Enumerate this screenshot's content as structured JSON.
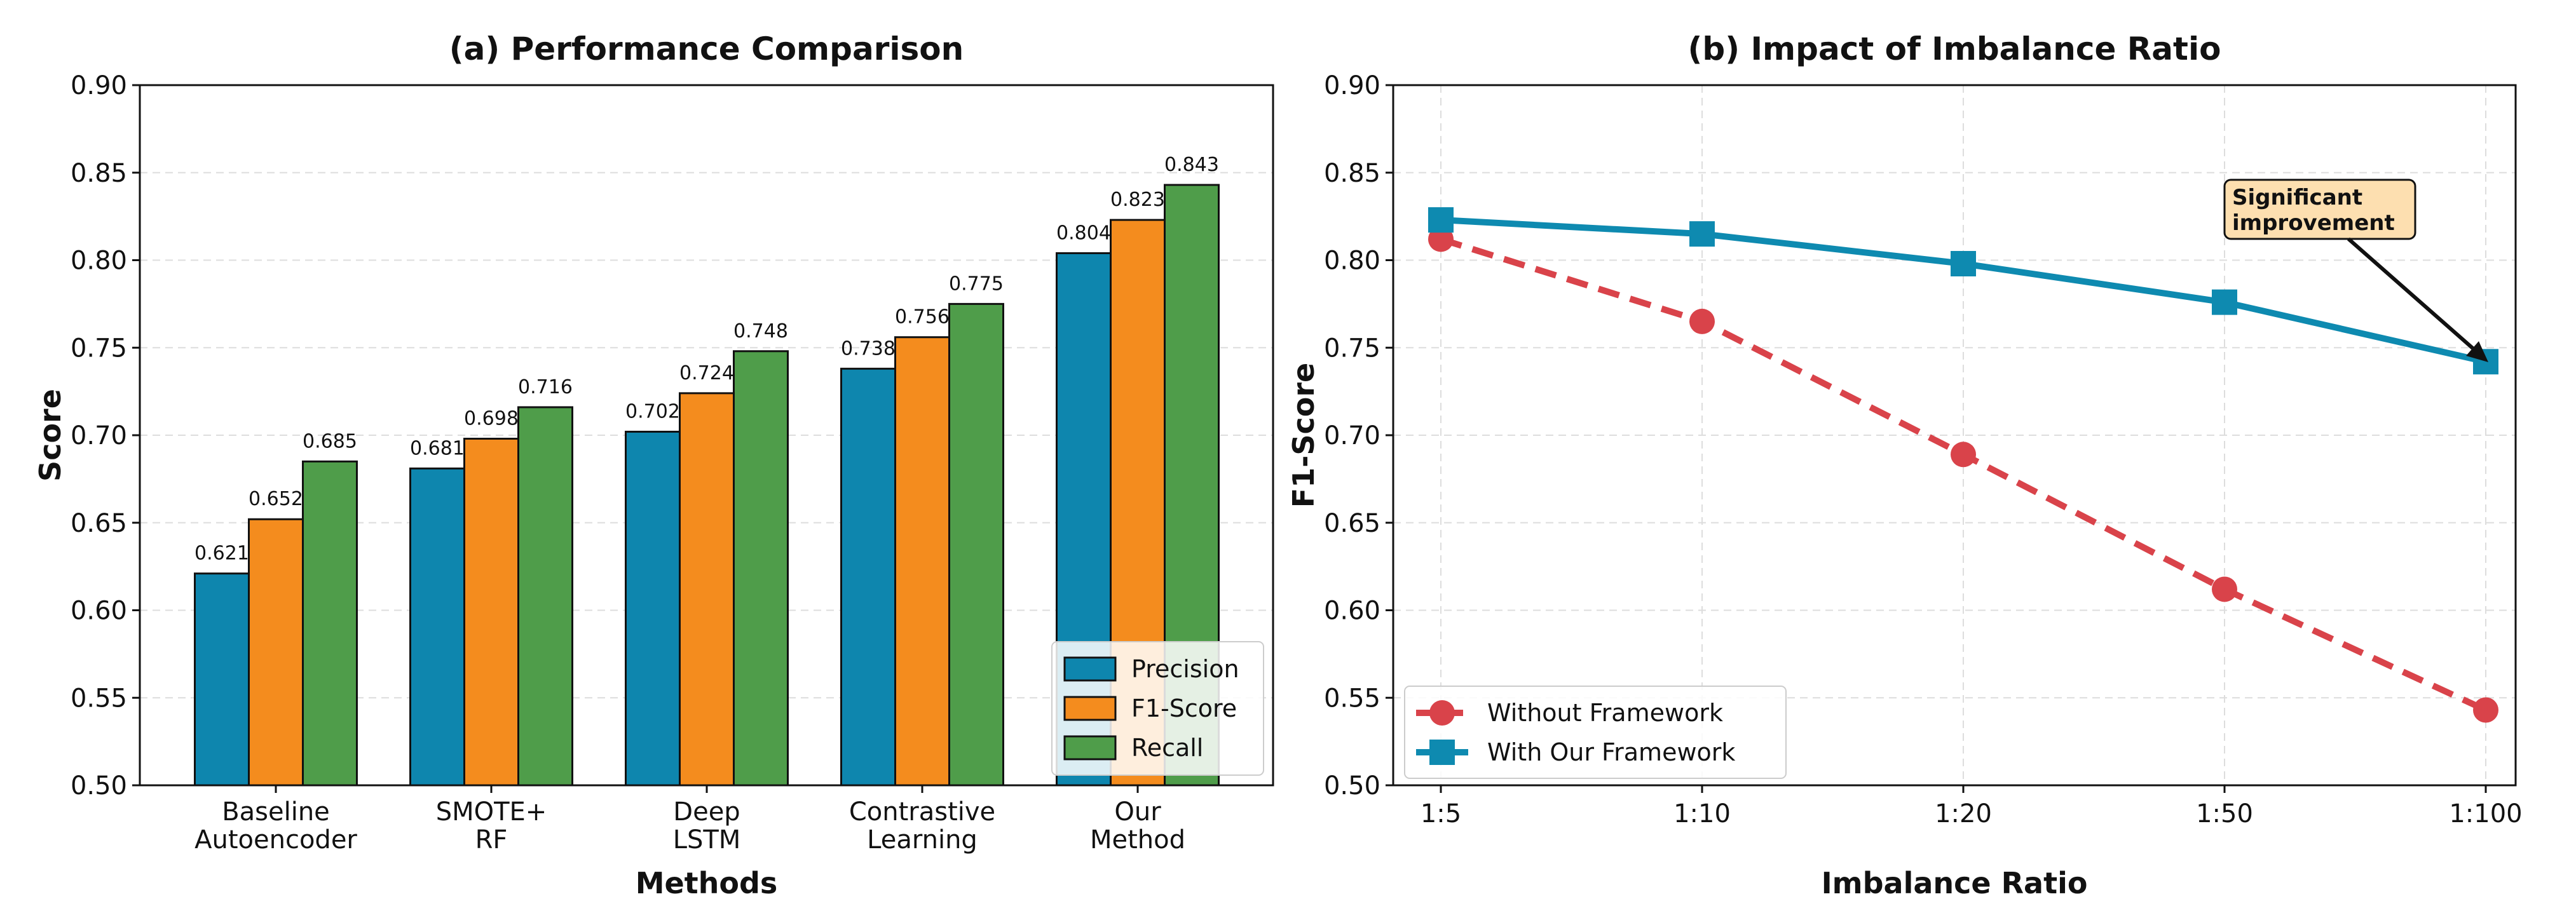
{
  "chart_data": [
    {
      "type": "bar",
      "title": "(a) Performance Comparison",
      "xlabel": "Methods",
      "ylabel": "Score",
      "ylim": [
        0.5,
        0.9
      ],
      "yticks": [
        "0.50",
        "0.55",
        "0.60",
        "0.65",
        "0.70",
        "0.75",
        "0.80",
        "0.85",
        "0.90"
      ],
      "grid": true,
      "legend_placement": "lower-right",
      "categories": [
        [
          "Baseline",
          "Autoencoder"
        ],
        [
          "SMOTE+",
          "RF"
        ],
        [
          "Deep",
          "LSTM"
        ],
        [
          "Contrastive",
          "Learning"
        ],
        [
          "Our",
          "Method"
        ]
      ],
      "series": [
        {
          "name": "Precision",
          "color": "#0E86AE",
          "values": [
            0.621,
            0.681,
            0.702,
            0.738,
            0.804
          ]
        },
        {
          "name": "F1-Score",
          "color": "#F48C1E",
          "values": [
            0.652,
            0.698,
            0.724,
            0.756,
            0.823
          ]
        },
        {
          "name": "Recall",
          "color": "#4F9D4A",
          "values": [
            0.685,
            0.716,
            0.748,
            0.775,
            0.843
          ]
        }
      ]
    },
    {
      "type": "line",
      "title": "(b) Impact of Imbalance Ratio",
      "xlabel": "Imbalance Ratio",
      "ylabel": "F1-Score",
      "ylim": [
        0.5,
        0.9
      ],
      "yticks": [
        "0.50",
        "0.55",
        "0.60",
        "0.65",
        "0.70",
        "0.75",
        "0.80",
        "0.85",
        "0.90"
      ],
      "grid": true,
      "legend_placement": "lower-left",
      "categories": [
        "1:5",
        "1:10",
        "1:20",
        "1:50",
        "1:100"
      ],
      "series": [
        {
          "name": "Without Framework",
          "color": "#D9434A",
          "style": "dashed",
          "marker": "circle",
          "values": [
            0.812,
            0.765,
            0.689,
            0.612,
            0.543
          ]
        },
        {
          "name": "With Our Framework",
          "color": "#0E8AB0",
          "style": "solid",
          "marker": "square",
          "values": [
            0.823,
            0.815,
            0.798,
            0.776,
            0.742
          ]
        }
      ],
      "annotation": {
        "text": [
          "Significant",
          "improvement"
        ],
        "points_to": "1:100",
        "box_color": "#FDDFB0"
      }
    }
  ]
}
